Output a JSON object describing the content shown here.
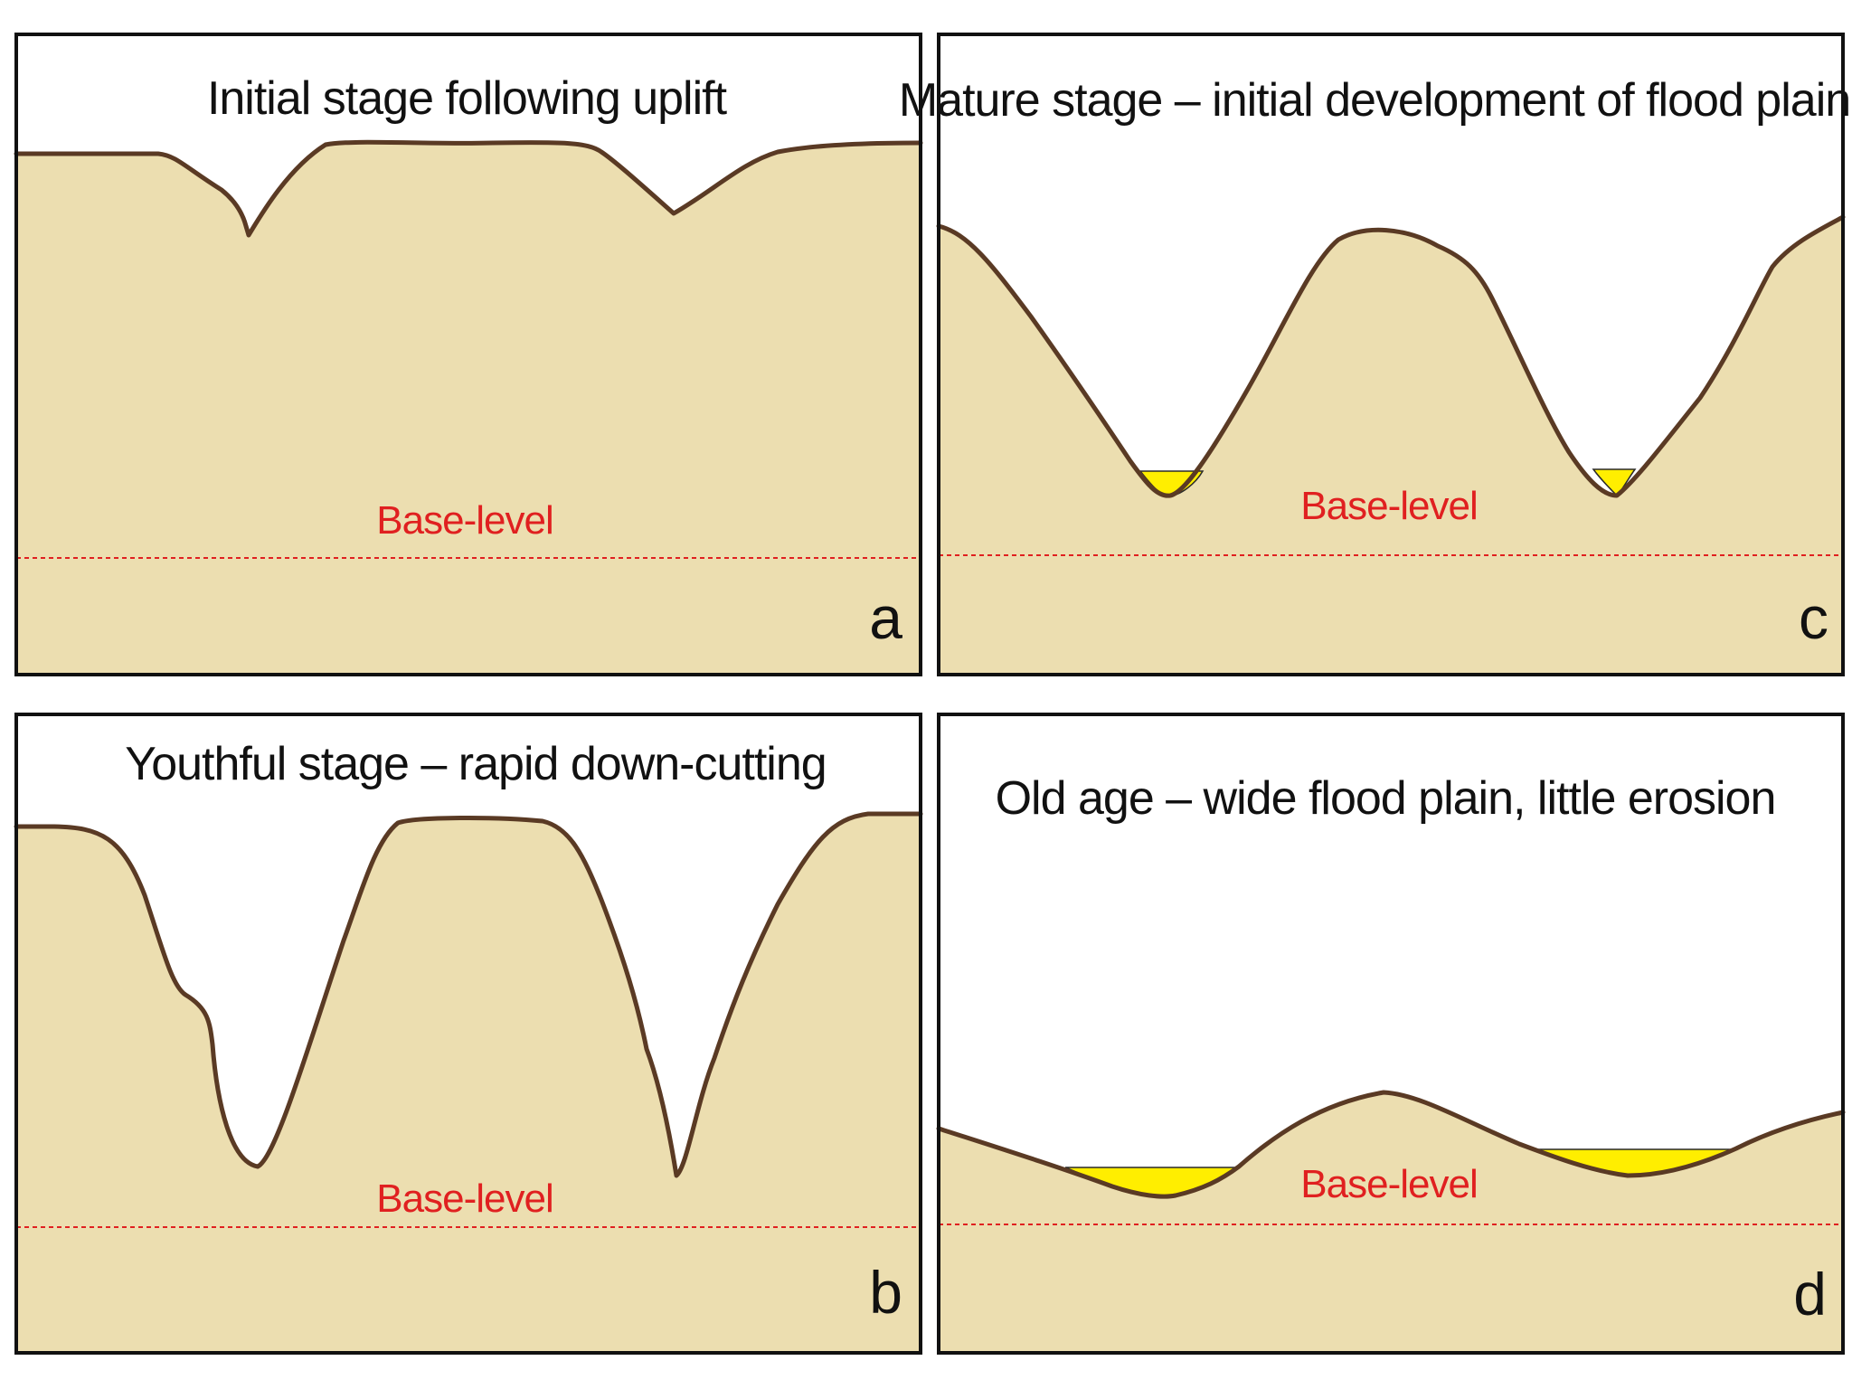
{
  "colors": {
    "ground": "#ecdeb0",
    "surface_line": "#5a3a24",
    "flood_plain": "#ffee00",
    "base_level": "#e02020",
    "frame": "#111111",
    "sky": "#ffffff"
  },
  "panels": {
    "a": {
      "title": "Initial stage following uplift",
      "base_label": "Base-level",
      "letter": "a"
    },
    "b": {
      "title": "Youthful stage – rapid down-cutting",
      "base_label": "Base-level",
      "letter": "b"
    },
    "c": {
      "title": "Mature stage – initial development of flood plain",
      "base_label": "Base-level",
      "letter": "c"
    },
    "d": {
      "title": "Old age –  wide flood plain, little erosion",
      "base_label": "Base-level",
      "letter": "d"
    }
  }
}
